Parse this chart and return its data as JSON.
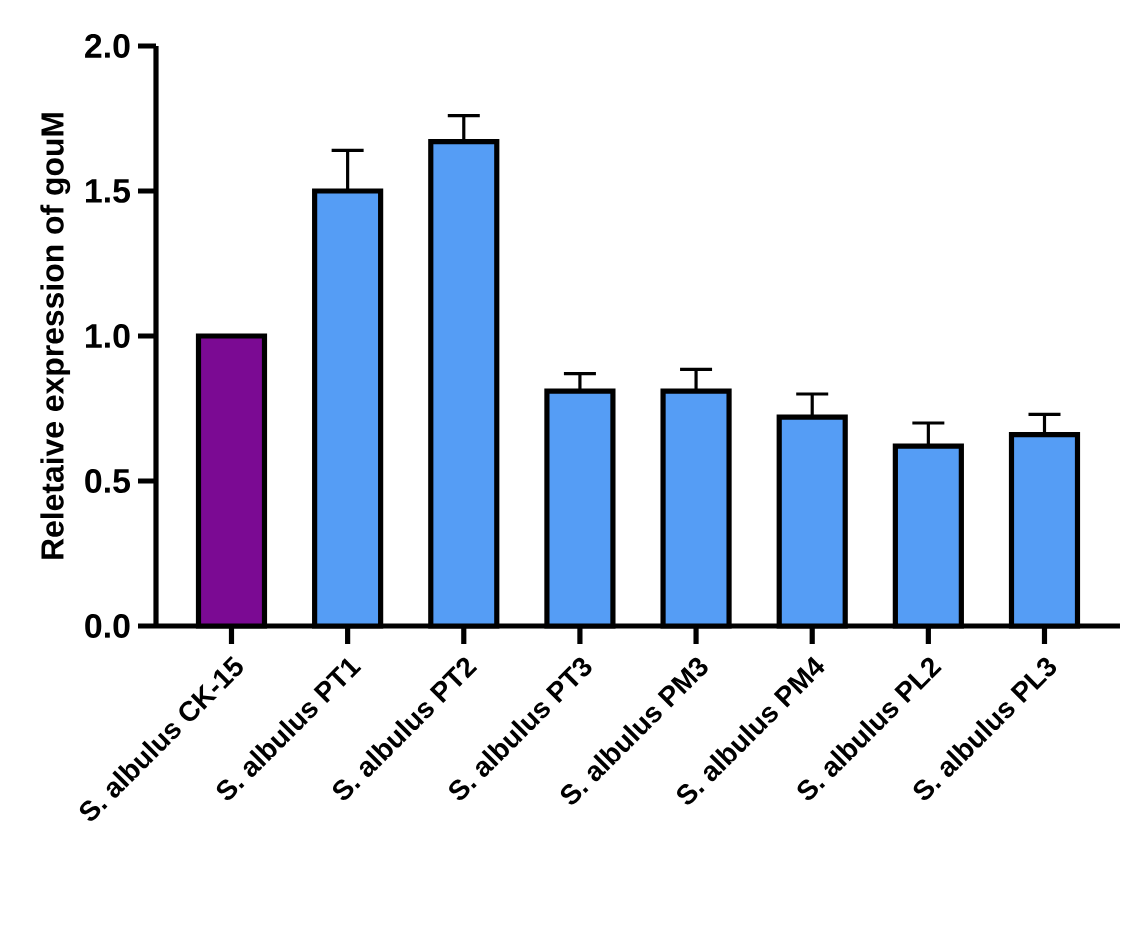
{
  "chart_data": {
    "type": "bar",
    "ylabel": "Reletaive expression of gouM",
    "categories": [
      "S. albulus CK-15",
      "S. albulus PT1",
      "S. albulus PT2",
      "S. albulus PT3",
      "S. albulus PM3",
      "S. albulus PM4",
      "S. albulus PL2",
      "S. albulus PL3"
    ],
    "values": [
      1.0,
      1.5,
      1.67,
      0.81,
      0.81,
      0.72,
      0.62,
      0.66
    ],
    "errors": [
      null,
      [
        1.5,
        1.64
      ],
      [
        1.67,
        1.76
      ],
      [
        0.81,
        0.87
      ],
      [
        0.81,
        0.885
      ],
      [
        0.72,
        0.8
      ],
      [
        0.62,
        0.7
      ],
      [
        0.66,
        0.73
      ]
    ],
    "colors": [
      "#7b0a93",
      "#559df5",
      "#559df5",
      "#559df5",
      "#559df5",
      "#559df5",
      "#559df5",
      "#559df5"
    ],
    "ylim": [
      0,
      2.0
    ],
    "yticks": [
      {
        "value": 0,
        "label": "0.0"
      },
      {
        "value": 0.5,
        "label": "0.5"
      },
      {
        "value": 1.0,
        "label": "1.0"
      },
      {
        "value": 1.5,
        "label": "1.5"
      },
      {
        "value": 2.0,
        "label": "2.0"
      }
    ]
  }
}
